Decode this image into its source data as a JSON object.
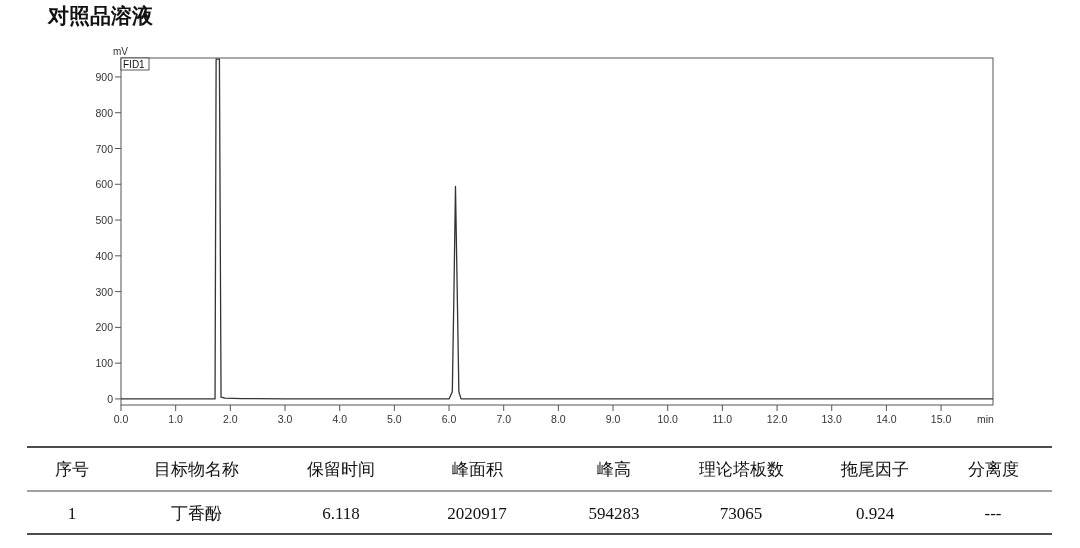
{
  "chart_data": {
    "type": "line",
    "title": "对照品溶液",
    "xlabel": "min",
    "ylabel": "mV",
    "x": [
      0,
      1.0,
      1.72,
      1.74,
      1.8,
      1.83,
      1.9,
      2.2,
      3.0,
      6.0,
      6.06,
      6.09,
      6.118,
      6.15,
      6.18,
      6.22,
      9.0,
      12.0,
      15.95
    ],
    "series": [
      {
        "color": "#333333",
        "values": [
          0,
          0,
          0,
          950,
          950,
          5,
          2,
          1,
          0,
          0,
          20,
          300,
          594,
          300,
          20,
          0,
          0,
          0,
          0
        ]
      }
    ],
    "xlim": [
      0,
      15.95
    ],
    "ylim": [
      -17,
      953
    ],
    "xticks": [
      {
        "value": 0,
        "label": "0.0"
      },
      {
        "value": 1,
        "label": "1.0"
      },
      {
        "value": 2,
        "label": "2.0"
      },
      {
        "value": 3,
        "label": "3.0"
      },
      {
        "value": 4,
        "label": "4.0"
      },
      {
        "value": 5,
        "label": "5.0"
      },
      {
        "value": 6,
        "label": "6.0"
      },
      {
        "value": 7,
        "label": "7.0"
      },
      {
        "value": 8,
        "label": "8.0"
      },
      {
        "value": 9,
        "label": "9.0"
      },
      {
        "value": 10,
        "label": "10.0"
      },
      {
        "value": 11,
        "label": "11.0"
      },
      {
        "value": 12,
        "label": "12.0"
      },
      {
        "value": 13,
        "label": "13.0"
      },
      {
        "value": 14,
        "label": "14.0"
      },
      {
        "value": 15,
        "label": "15.0"
      }
    ],
    "yticks": [
      0,
      100,
      200,
      300,
      400,
      500,
      600,
      700,
      800,
      900
    ],
    "annotations": [
      "FID1",
      "序号",
      "目标物名称",
      "保留时间",
      "峰面积",
      "峰高",
      "理论塔板数",
      "拖尾因子",
      "分离度",
      "1",
      "丁香酚",
      "6.118",
      "2020917",
      "594283",
      "73065",
      "0.924",
      "---"
    ]
  }
}
